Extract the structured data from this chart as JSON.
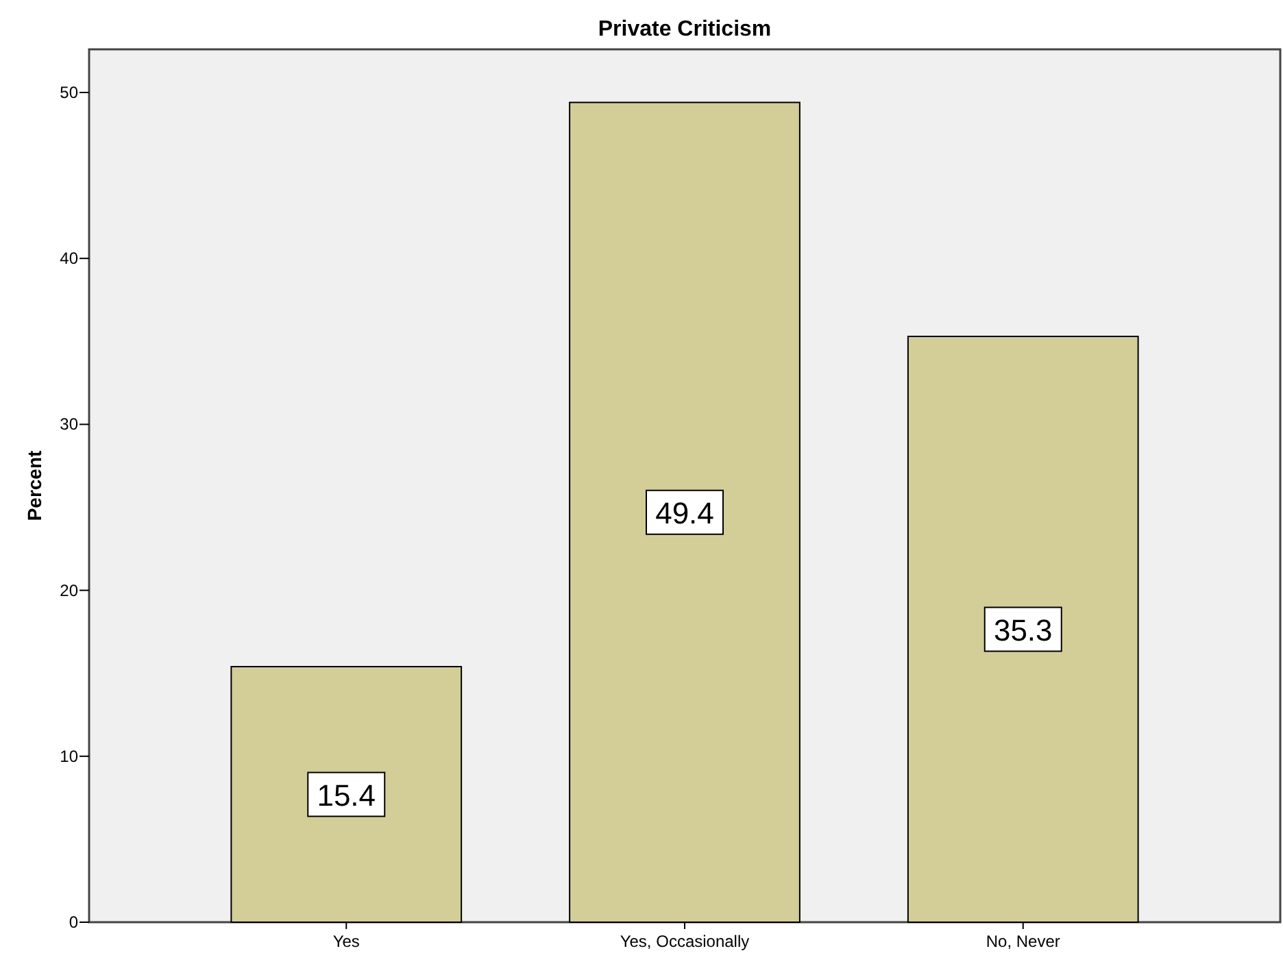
{
  "chart_data": {
    "type": "bar",
    "title": "Private Criticism",
    "ylabel": "Percent",
    "categories": [
      "Yes",
      "Yes, Occasionally",
      "No, Never"
    ],
    "values": [
      15.4,
      49.4,
      35.3
    ],
    "color": "#d3ce98",
    "ylim": [
      0,
      52.6
    ],
    "yticks": [
      0,
      10,
      20,
      30,
      40,
      50
    ],
    "grid": false,
    "data_labels": true
  }
}
